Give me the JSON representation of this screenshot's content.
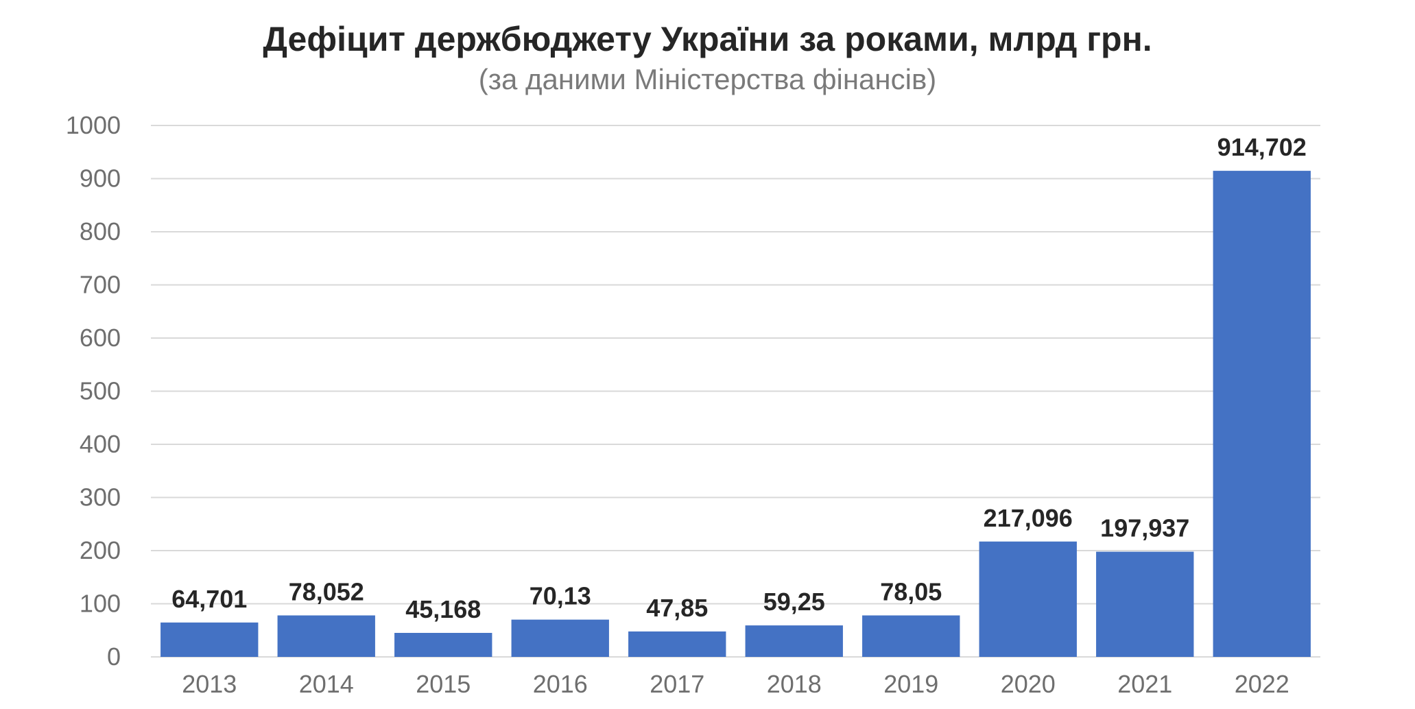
{
  "chart_data": {
    "type": "bar",
    "title": "Дефіцит держбюджету України за роками, млрд грн.",
    "subtitle": "(за даними Міністерства фінансів)",
    "categories": [
      "2013",
      "2014",
      "2015",
      "2016",
      "2017",
      "2018",
      "2019",
      "2020",
      "2021",
      "2022"
    ],
    "values": [
      64.701,
      78.052,
      45.168,
      70.13,
      47.85,
      59.25,
      78.05,
      217.096,
      197.937,
      914.702
    ],
    "data_labels": [
      "64,701",
      "78,052",
      "45,168",
      "70,13",
      "47,85",
      "59,25",
      "78,05",
      "217,096",
      "197,937",
      "914,702"
    ],
    "y_ticks": [
      "0",
      "100",
      "200",
      "300",
      "400",
      "500",
      "600",
      "700",
      "800",
      "900",
      "1000"
    ],
    "ylim": [
      0,
      1000
    ],
    "xlabel": "",
    "ylabel": "",
    "grid": true,
    "legend": "none",
    "bar_color": "#4472c4",
    "grid_color": "#d9d9d9"
  }
}
